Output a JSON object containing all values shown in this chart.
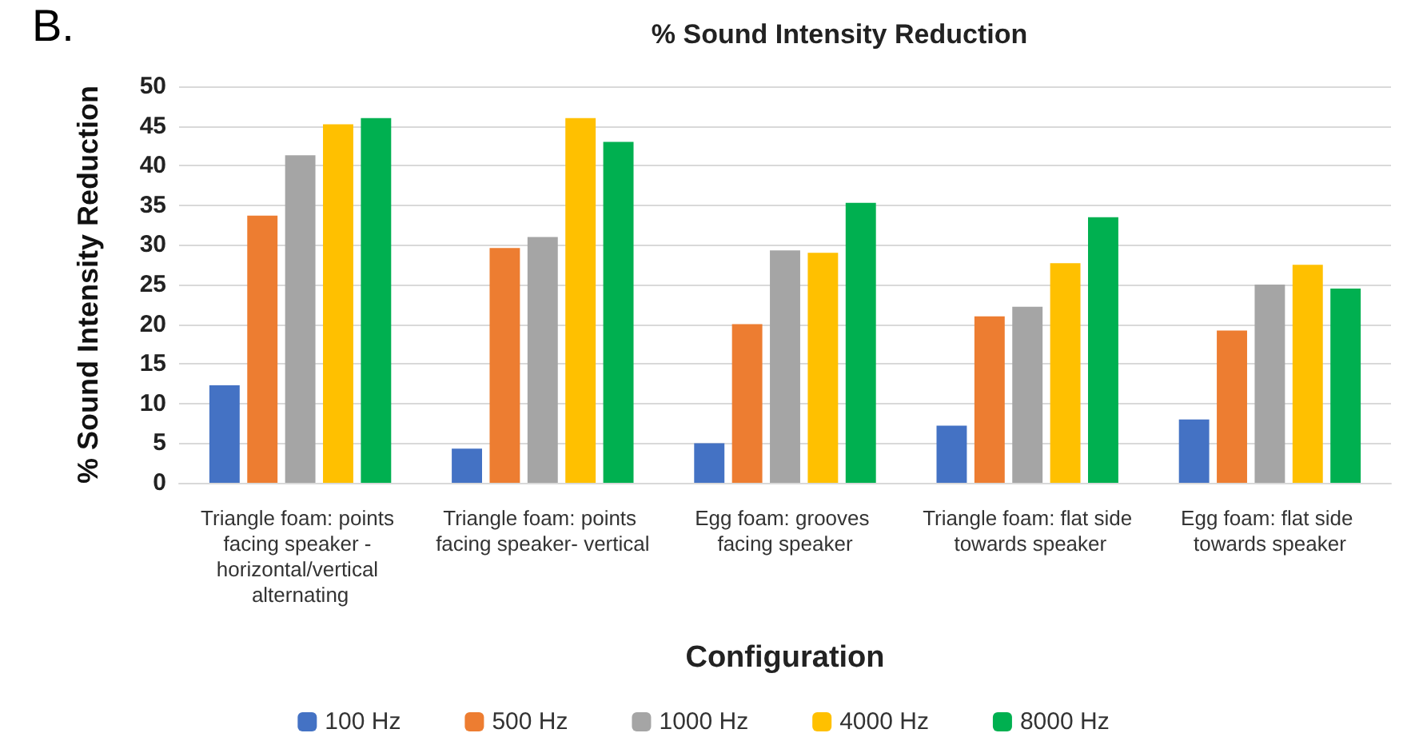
{
  "chart_data": {
    "type": "bar",
    "title": "% Sound Intensity Reduction",
    "xlabel": "Configuration",
    "ylabel": "% Sound Intensity Reduction",
    "annotations": [
      "B."
    ],
    "categories": [
      "Triangle foam: points facing speaker - horizontal/vertical alternating",
      "Triangle foam: points facing speaker- vertical",
      "Egg foam: grooves facing speaker",
      "Triangle foam: flat side towards speaker",
      "Egg foam: flat side towards speaker"
    ],
    "series": [
      {
        "name": "100 Hz",
        "color": "#4472c4",
        "values": [
          12.3,
          4.3,
          5,
          7.2,
          8
        ]
      },
      {
        "name": "500 Hz",
        "color": "#ed7d31",
        "values": [
          33.7,
          29.6,
          20,
          21,
          19.2
        ]
      },
      {
        "name": "1000 Hz",
        "color": "#a5a5a5",
        "values": [
          41.3,
          31,
          29.3,
          22.2,
          25
        ]
      },
      {
        "name": "4000 Hz",
        "color": "#ffc000",
        "values": [
          45.2,
          46,
          29,
          27.7,
          27.5
        ]
      },
      {
        "name": "8000 Hz",
        "color": "#00b050",
        "values": [
          46,
          43,
          35.3,
          33.5,
          24.5
        ]
      }
    ],
    "ylim": [
      0,
      50
    ],
    "yticks": [
      0,
      5,
      10,
      15,
      20,
      25,
      30,
      35,
      40,
      45,
      50
    ],
    "grid": "y",
    "legend": "bottom"
  }
}
